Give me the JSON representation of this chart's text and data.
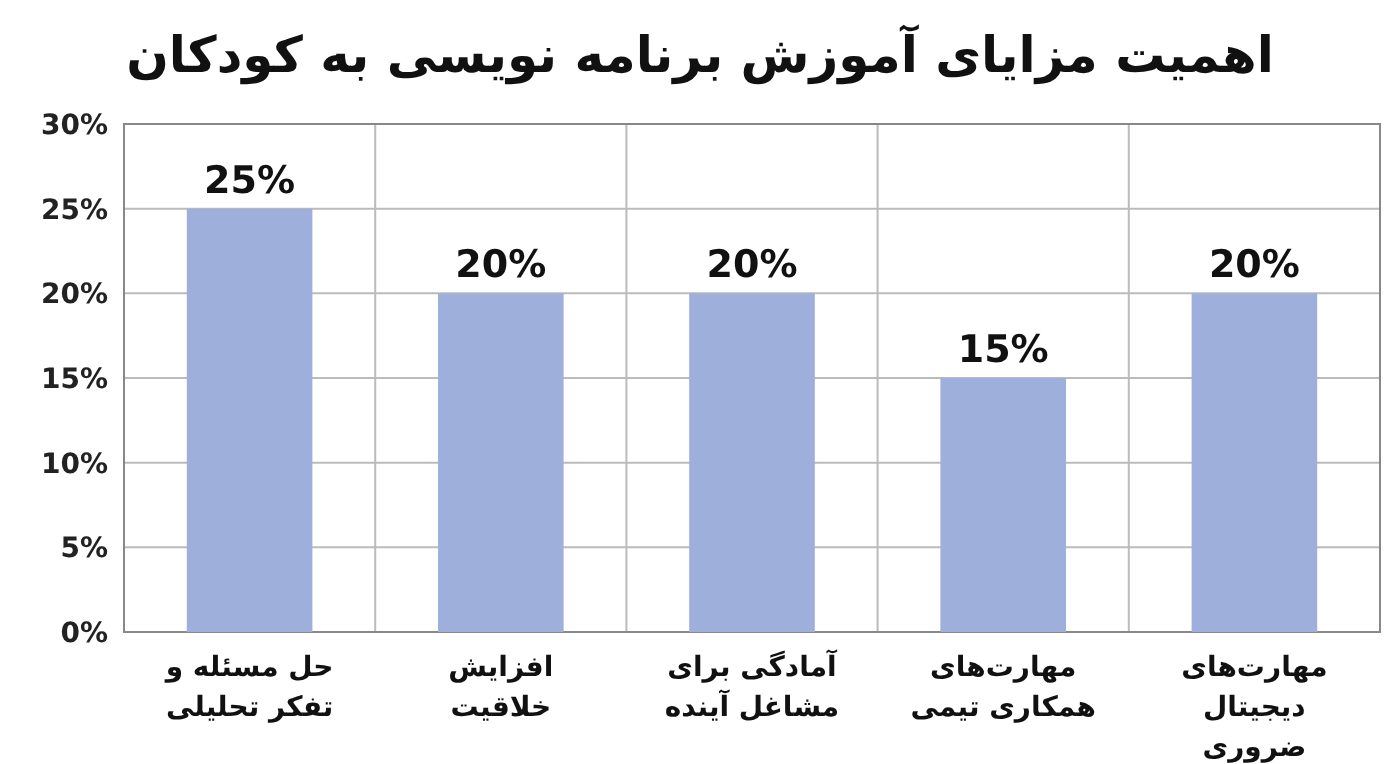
{
  "chart_data": {
    "type": "bar",
    "title": "اهمیت مزایای آموزش برنامه نویسی به کودکان",
    "categories": [
      "حل مسئله و تفکر تحلیلی",
      "افزایش خلاقیت",
      "آمادگی برای مشاغل آینده",
      "مهارت‌های همکاری تیمی",
      "مهارت‌های دیجیتال ضروری"
    ],
    "values": [
      25,
      20,
      20,
      15,
      20
    ],
    "value_labels": [
      "25%",
      "20%",
      "20%",
      "15%",
      "20%"
    ],
    "color": "#9eafdc",
    "ylim": [
      0,
      30
    ],
    "yticks": [
      {
        "value": 0,
        "label": "0%"
      },
      {
        "value": 5,
        "label": "5%"
      },
      {
        "value": 10,
        "label": "10%"
      },
      {
        "value": 15,
        "label": "15%"
      },
      {
        "value": 20,
        "label": "20%"
      },
      {
        "value": 25,
        "label": "25%"
      },
      {
        "value": 30,
        "label": "30%"
      }
    ],
    "grid": true
  }
}
